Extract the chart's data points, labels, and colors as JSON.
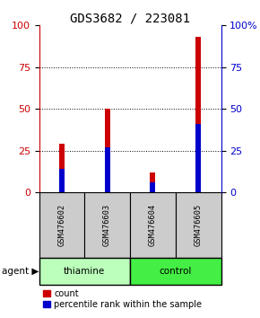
{
  "title": "GDS3682 / 223081",
  "samples": [
    "GSM476602",
    "GSM476603",
    "GSM476604",
    "GSM476605"
  ],
  "count_values": [
    29,
    50,
    12,
    93
  ],
  "percentile_values": [
    14,
    27,
    6,
    41
  ],
  "ylim": [
    0,
    100
  ],
  "yticks": [
    0,
    25,
    50,
    75,
    100
  ],
  "bar_width": 0.12,
  "count_color": "#cc0000",
  "percentile_color": "#0000cc",
  "agent_groups": [
    {
      "label": "thiamine",
      "samples": [
        0,
        1
      ],
      "color": "#bbffbb"
    },
    {
      "label": "control",
      "samples": [
        2,
        3
      ],
      "color": "#44ee44"
    }
  ],
  "sample_box_color": "#cccccc",
  "left_axis_color": "#cc0000",
  "right_axis_color": "#0000cc",
  "background_color": "#ffffff",
  "title_fontsize": 10,
  "tick_fontsize": 8,
  "legend_fontsize": 7,
  "agent_label": "agent",
  "legend_items": [
    "count",
    "percentile rank within the sample"
  ]
}
